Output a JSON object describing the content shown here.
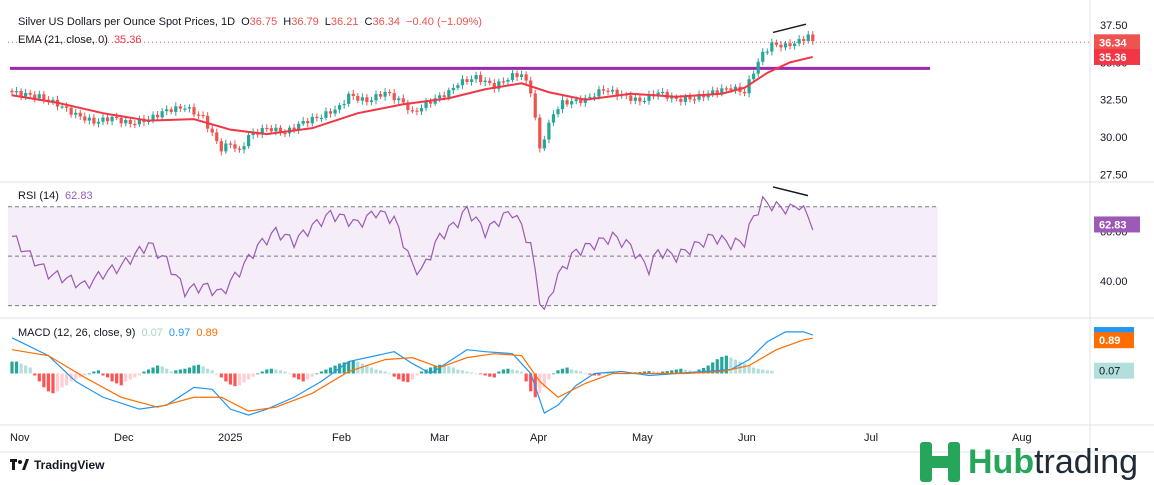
{
  "header": {
    "symbol": "Silver US Dollars per Ounce Spot Prices, 1D",
    "o_label": "O",
    "o": "36.75",
    "h_label": "H",
    "h": "36.79",
    "l_label": "L",
    "l": "36.21",
    "c_label": "C",
    "c": "36.34",
    "change": "−0.40 (−1.09%)",
    "ema_label": "EMA (21, close, 0)",
    "ema_value": "35.36"
  },
  "rsi_legend": {
    "label": "RSI (14)",
    "value": "62.83"
  },
  "macd_legend": {
    "label": "MACD (12, 26, close, 9)",
    "hist": "0.07",
    "macd": "0.97",
    "signal": "0.89"
  },
  "branding": {
    "tradingview": "TradingView",
    "hub1": "Hub",
    "hub2": "trading"
  },
  "colors": {
    "up": "#26a69a",
    "down": "#ef5350",
    "ema": "#f23645",
    "rsi": "#9c59b6",
    "macd": "#2196f3",
    "signal": "#ff6d00",
    "resistance": "#9c27b0"
  },
  "chart_data": [
    {
      "type": "candlestick",
      "title": "Silver US Dollars per Ounce Spot Prices, 1D",
      "y_ticks": [
        37.5,
        35.0,
        32.5,
        30.0,
        27.5
      ],
      "y_tick_labels": [
        "37.50",
        "35.00",
        "32.50",
        "30.00",
        "27.50"
      ],
      "ylim": [
        27.0,
        38.5
      ],
      "x_ticks": [
        "Nov",
        "Dec",
        "2025",
        "Feb",
        "Mar",
        "Apr",
        "May",
        "Jun",
        "Jul",
        "Aug"
      ],
      "price_label": "36.34",
      "ema_label": "35.36",
      "resistance_level": 34.6,
      "close_path": [
        [
          0,
          33.0
        ],
        [
          6,
          32.7
        ],
        [
          10,
          32.2
        ],
        [
          14,
          31.5
        ],
        [
          18,
          31.0
        ],
        [
          22,
          31.3
        ],
        [
          26,
          30.9
        ],
        [
          30,
          31.2
        ],
        [
          34,
          31.8
        ],
        [
          38,
          32.0
        ],
        [
          42,
          31.3
        ],
        [
          44,
          30.2
        ],
        [
          46,
          29.2
        ],
        [
          48,
          29.6
        ],
        [
          50,
          29.0
        ],
        [
          52,
          30.1
        ],
        [
          56,
          30.6
        ],
        [
          60,
          30.3
        ],
        [
          64,
          31.0
        ],
        [
          68,
          31.4
        ],
        [
          72,
          32.0
        ],
        [
          74,
          32.8
        ],
        [
          78,
          32.4
        ],
        [
          82,
          33.0
        ],
        [
          86,
          32.3
        ],
        [
          88,
          31.6
        ],
        [
          92,
          32.4
        ],
        [
          96,
          33.0
        ],
        [
          98,
          33.6
        ],
        [
          102,
          34.0
        ],
        [
          106,
          33.4
        ],
        [
          110,
          34.1
        ],
        [
          112,
          34.2
        ],
        [
          114,
          33.1
        ],
        [
          115,
          31.2
        ],
        [
          116,
          29.2
        ],
        [
          117,
          30.0
        ],
        [
          119,
          31.6
        ],
        [
          121,
          32.3
        ],
        [
          126,
          32.5
        ],
        [
          130,
          33.2
        ],
        [
          134,
          32.8
        ],
        [
          138,
          32.4
        ],
        [
          142,
          33.0
        ],
        [
          146,
          32.5
        ],
        [
          150,
          32.6
        ],
        [
          154,
          33.0
        ],
        [
          158,
          33.3
        ],
        [
          161,
          33.0
        ],
        [
          163,
          34.4
        ],
        [
          165,
          35.6
        ],
        [
          167,
          36.2
        ],
        [
          170,
          36.1
        ],
        [
          173,
          36.4
        ],
        [
          175,
          36.8
        ],
        [
          176,
          36.34
        ]
      ],
      "ema_path": [
        [
          0,
          32.8
        ],
        [
          10,
          32.3
        ],
        [
          20,
          31.6
        ],
        [
          30,
          31.1
        ],
        [
          40,
          31.2
        ],
        [
          48,
          30.5
        ],
        [
          56,
          30.2
        ],
        [
          66,
          30.6
        ],
        [
          76,
          31.6
        ],
        [
          86,
          32.2
        ],
        [
          96,
          32.6
        ],
        [
          104,
          33.2
        ],
        [
          112,
          33.6
        ],
        [
          118,
          33.0
        ],
        [
          126,
          32.5
        ],
        [
          136,
          32.9
        ],
        [
          146,
          32.7
        ],
        [
          156,
          32.9
        ],
        [
          161,
          33.3
        ],
        [
          166,
          34.3
        ],
        [
          171,
          35.0
        ],
        [
          176,
          35.36
        ]
      ]
    },
    {
      "type": "line",
      "title": "RSI (14)",
      "y_ticks": [
        60.0,
        40.0
      ],
      "y_tick_labels": [
        "60.00",
        "40.00"
      ],
      "ylim": [
        25,
        80
      ],
      "bands": [
        70,
        50,
        30
      ],
      "value_label": "62.83",
      "rsi_path": [
        [
          0,
          58
        ],
        [
          4,
          50
        ],
        [
          8,
          43
        ],
        [
          12,
          41
        ],
        [
          16,
          38
        ],
        [
          20,
          43
        ],
        [
          24,
          46
        ],
        [
          28,
          52
        ],
        [
          30,
          55
        ],
        [
          34,
          48
        ],
        [
          38,
          36
        ],
        [
          42,
          38
        ],
        [
          46,
          35
        ],
        [
          50,
          44
        ],
        [
          54,
          54
        ],
        [
          58,
          60
        ],
        [
          62,
          56
        ],
        [
          66,
          62
        ],
        [
          70,
          67
        ],
        [
          72,
          66
        ],
        [
          76,
          63
        ],
        [
          80,
          68
        ],
        [
          84,
          65
        ],
        [
          86,
          56
        ],
        [
          88,
          46
        ],
        [
          90,
          44
        ],
        [
          94,
          58
        ],
        [
          98,
          64
        ],
        [
          100,
          69
        ],
        [
          104,
          60
        ],
        [
          108,
          66
        ],
        [
          110,
          68
        ],
        [
          112,
          62
        ],
        [
          114,
          54
        ],
        [
          116,
          33
        ],
        [
          117,
          27
        ],
        [
          119,
          38
        ],
        [
          121,
          45
        ],
        [
          124,
          52
        ],
        [
          128,
          55
        ],
        [
          132,
          58
        ],
        [
          136,
          54
        ],
        [
          138,
          49
        ],
        [
          140,
          45
        ],
        [
          142,
          52
        ],
        [
          146,
          50
        ],
        [
          150,
          54
        ],
        [
          154,
          58
        ],
        [
          158,
          55
        ],
        [
          161,
          56
        ],
        [
          163,
          66
        ],
        [
          165,
          72
        ],
        [
          168,
          70
        ],
        [
          171,
          69
        ],
        [
          173,
          71
        ],
        [
          176,
          62.83
        ]
      ]
    },
    {
      "type": "bar",
      "title": "MACD (12, 26, close, 9)",
      "ylim": [
        -1.3,
        1.4
      ],
      "macd_label": "0.97",
      "signal_label": "0.89",
      "hist_label": "0.07",
      "macd_path": [
        [
          0,
          0.9
        ],
        [
          8,
          0.45
        ],
        [
          14,
          -0.2
        ],
        [
          20,
          -0.6
        ],
        [
          28,
          -0.9
        ],
        [
          34,
          -0.8
        ],
        [
          40,
          -0.35
        ],
        [
          44,
          -0.4
        ],
        [
          48,
          -0.9
        ],
        [
          52,
          -1.05
        ],
        [
          56,
          -0.9
        ],
        [
          62,
          -0.6
        ],
        [
          68,
          -0.2
        ],
        [
          74,
          0.3
        ],
        [
          80,
          0.45
        ],
        [
          84,
          0.55
        ],
        [
          88,
          0.25
        ],
        [
          92,
          0.0
        ],
        [
          96,
          0.3
        ],
        [
          100,
          0.6
        ],
        [
          104,
          0.55
        ],
        [
          110,
          0.5
        ],
        [
          114,
          0.0
        ],
        [
          117,
          -1.0
        ],
        [
          120,
          -0.8
        ],
        [
          124,
          -0.3
        ],
        [
          128,
          0.0
        ],
        [
          134,
          0.05
        ],
        [
          140,
          -0.05
        ],
        [
          146,
          0.0
        ],
        [
          152,
          0.05
        ],
        [
          158,
          0.1
        ],
        [
          162,
          0.35
        ],
        [
          166,
          0.8
        ],
        [
          170,
          1.05
        ],
        [
          174,
          1.05
        ],
        [
          176,
          0.97
        ]
      ],
      "signal_path": [
        [
          0,
          0.6
        ],
        [
          8,
          0.45
        ],
        [
          16,
          -0.1
        ],
        [
          24,
          -0.6
        ],
        [
          32,
          -0.85
        ],
        [
          40,
          -0.6
        ],
        [
          46,
          -0.6
        ],
        [
          52,
          -0.95
        ],
        [
          58,
          -0.85
        ],
        [
          66,
          -0.5
        ],
        [
          74,
          0.05
        ],
        [
          82,
          0.35
        ],
        [
          88,
          0.4
        ],
        [
          94,
          0.15
        ],
        [
          100,
          0.4
        ],
        [
          106,
          0.5
        ],
        [
          112,
          0.45
        ],
        [
          116,
          -0.2
        ],
        [
          120,
          -0.6
        ],
        [
          126,
          -0.25
        ],
        [
          132,
          0.0
        ],
        [
          140,
          0.0
        ],
        [
          148,
          0.0
        ],
        [
          156,
          0.05
        ],
        [
          162,
          0.2
        ],
        [
          168,
          0.6
        ],
        [
          174,
          0.85
        ],
        [
          176,
          0.89
        ]
      ],
      "histogram": [
        0.3,
        0.3,
        0.25,
        0.2,
        0.15,
        -0.05,
        -0.2,
        -0.35,
        -0.45,
        -0.5,
        -0.45,
        -0.35,
        -0.3,
        -0.2,
        -0.15,
        -0.1,
        -0.05,
        0.0,
        0.05,
        0.08,
        -0.05,
        -0.1,
        -0.2,
        -0.25,
        -0.3,
        -0.2,
        -0.15,
        -0.1,
        -0.05,
        0.05,
        0.1,
        0.15,
        0.2,
        0.18,
        0.12,
        0.05,
        0.08,
        0.1,
        0.12,
        0.15,
        0.2,
        0.22,
        0.18,
        0.12,
        0.08,
        0.0,
        -0.1,
        -0.2,
        -0.28,
        -0.32,
        -0.3,
        -0.22,
        -0.15,
        -0.08,
        0.0,
        0.05,
        0.1,
        0.12,
        0.1,
        0.08,
        0.05,
        0.0,
        -0.1,
        -0.15,
        -0.2,
        -0.15,
        -0.08,
        0.0,
        0.05,
        0.1,
        0.15,
        0.2,
        0.25,
        0.28,
        0.3,
        0.32,
        0.3,
        0.25,
        0.2,
        0.15,
        0.1,
        0.08,
        0.05,
        0.0,
        -0.08,
        -0.15,
        -0.2,
        -0.22,
        -0.15,
        -0.05,
        0.05,
        0.1,
        0.15,
        0.2,
        0.22,
        0.2,
        0.18,
        0.15,
        0.1,
        0.08,
        0.05,
        0.03,
        0.0,
        -0.02,
        -0.05,
        -0.08,
        -0.1,
        0.05,
        0.1,
        0.12,
        0.1,
        0.08,
        0.05,
        -0.2,
        -0.45,
        -0.6,
        -0.5,
        -0.35,
        -0.15,
        0.0,
        0.08,
        0.12,
        0.15,
        0.1,
        0.08,
        0.05,
        0.0,
        -0.03,
        -0.05,
        -0.05,
        0.02,
        0.04,
        0.05,
        0.03,
        0.01,
        0.0,
        0.02,
        0.03,
        0.04,
        0.05,
        0.06,
        0.05,
        0.04,
        0.05,
        0.06,
        0.08,
        0.1,
        0.12,
        0.1,
        0.08,
        0.06,
        0.1,
        0.14,
        0.2,
        0.28,
        0.36,
        0.42,
        0.45,
        0.4,
        0.35,
        0.3,
        0.25,
        0.2,
        0.15,
        0.12,
        0.1,
        0.08,
        0.07
      ]
    }
  ]
}
